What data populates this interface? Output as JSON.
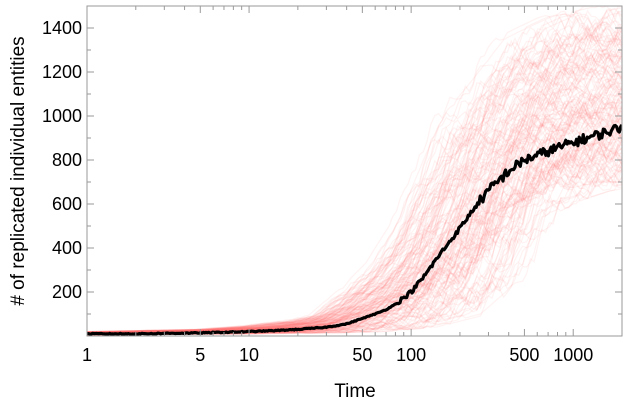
{
  "chart_data": {
    "type": "line",
    "title": "",
    "xlabel": "Time",
    "ylabel": "# of replicated individual entities",
    "x_scale": "log",
    "xlim": [
      1,
      2000
    ],
    "ylim": [
      0,
      1500
    ],
    "x_ticks": [
      1,
      5,
      10,
      50,
      100,
      500,
      1000
    ],
    "x_tick_labels": [
      "1",
      "5",
      "10",
      "50",
      "100",
      "500",
      "1000"
    ],
    "y_ticks": [
      200,
      400,
      600,
      800,
      1000,
      1200,
      1400
    ],
    "y_tick_labels": [
      "200",
      "400",
      "600",
      "800",
      "1000",
      "1200",
      "1400"
    ],
    "grid": false,
    "legend": "none",
    "colors": {
      "runs": "#ff4d4d",
      "mean": "#000000"
    },
    "series": [
      {
        "role": "mean",
        "x": [
          1,
          2,
          3,
          5,
          7,
          10,
          15,
          20,
          30,
          40,
          50,
          60,
          70,
          80,
          100,
          120,
          150,
          200,
          250,
          300,
          400,
          500,
          700,
          1000,
          1500,
          2000
        ],
        "y": [
          10,
          10,
          12,
          14,
          17,
          20,
          25,
          30,
          40,
          55,
          80,
          100,
          120,
          145,
          200,
          270,
          370,
          490,
          590,
          660,
          750,
          800,
          840,
          880,
          920,
          950
        ]
      },
      {
        "role": "individual-runs-upper-envelope",
        "x": [
          1,
          5,
          10,
          20,
          30,
          50,
          70,
          100,
          150,
          200,
          300,
          500,
          700,
          1000,
          2000
        ],
        "y": [
          20,
          30,
          45,
          70,
          100,
          230,
          330,
          500,
          800,
          1000,
          1150,
          1350,
          1400,
          1450,
          1500
        ]
      },
      {
        "role": "individual-runs-lower-envelope",
        "x": [
          1,
          10,
          30,
          50,
          100,
          200,
          300,
          400,
          500,
          700,
          1000,
          2000
        ],
        "y": [
          5,
          10,
          15,
          20,
          40,
          100,
          220,
          400,
          560,
          620,
          660,
          700
        ]
      }
    ]
  }
}
